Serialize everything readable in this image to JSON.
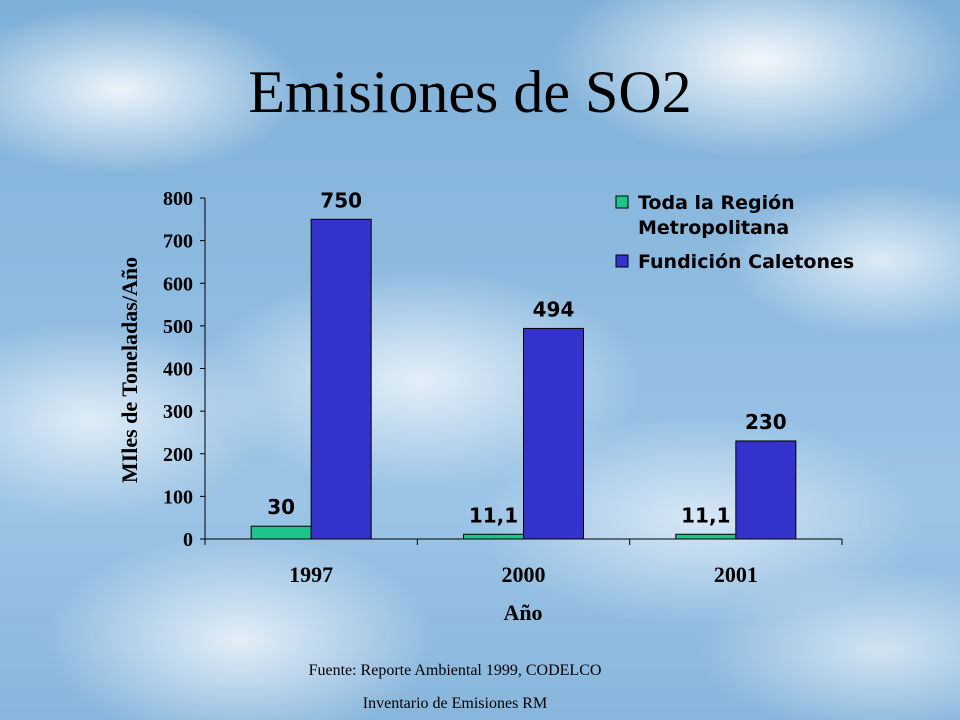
{
  "slide": {
    "title": "Emisiones de SO2",
    "source_line1": "Fuente: Reporte Ambiental 1999, CODELCO",
    "source_line2": "Inventario de Emisiones RM"
  },
  "colors": {
    "series_region": "#1fc48a",
    "series_caletones": "#3333cc"
  },
  "chart_data": {
    "type": "bar",
    "categories": [
      "1997",
      "2000",
      "2001"
    ],
    "series": [
      {
        "name": "Toda la Región Metropolitana",
        "legend_lines": [
          "Toda la Región",
          "Metropolitana"
        ],
        "values": [
          30,
          11.1,
          11.1
        ],
        "labels": [
          "30",
          "11,1",
          "11,1"
        ]
      },
      {
        "name": "Fundición Caletones",
        "legend_lines": [
          "Fundición Caletones"
        ],
        "values": [
          750,
          494,
          230
        ],
        "labels": [
          "750",
          "494",
          "230"
        ]
      }
    ],
    "xlabel": "Año",
    "ylabel": "MIles de Toneladas/Año",
    "ylim": [
      0,
      800
    ],
    "yticks": [
      0,
      100,
      200,
      300,
      400,
      500,
      600,
      700,
      800
    ],
    "grid": false,
    "legend_position": "top-right"
  }
}
